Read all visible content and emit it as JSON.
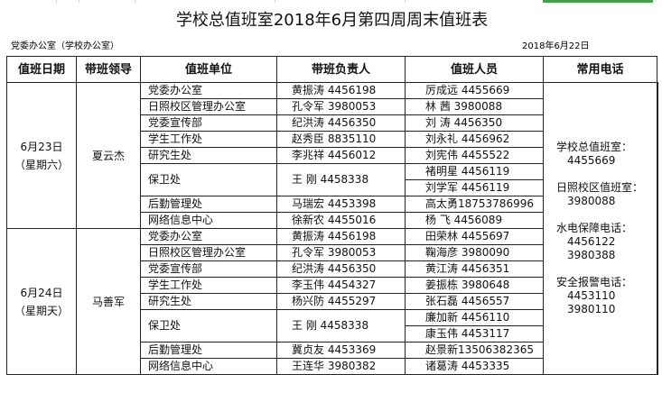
{
  "title": "学校总值班室2018年6月第四周周末值班表",
  "dept": "党委办公室（学校办公室）",
  "date": "2018年6月22日",
  "headers": [
    "值班日期",
    "带班领导",
    "值班单位",
    "带班负责人",
    "值班人员",
    "常用电话"
  ],
  "days": [
    {
      "date": "6月23日",
      "weekday": "（星期六）",
      "leader": "夏云杰",
      "rows": [
        {
          "unit": "党委办公室",
          "resp": "黄振涛  4456198",
          "staff": [
            "厉成远  4455669"
          ]
        },
        {
          "unit": "日照校区管理办公室",
          "resp": "孔令军  3980053",
          "staff": [
            "林    茜  3980088"
          ]
        },
        {
          "unit": "党委宣传部",
          "resp": "纪洪涛  4456350",
          "staff": [
            "刘    涛  4456350"
          ]
        },
        {
          "unit": "学生工作处",
          "resp": "赵秀臣  8835110",
          "staff": [
            "刘永礼  4456962"
          ]
        },
        {
          "unit": "研究生处",
          "resp": "李兆祥  4456012",
          "staff": [
            "刘宪伟  4455522"
          ]
        },
        {
          "unit": "保卫处",
          "resp": "王    刚  4458338",
          "staff": [
            "褚明星  4456119",
            "刘学军  4456119"
          ]
        },
        {
          "unit": "后勤管理处",
          "resp": "马瑞宏  4453398",
          "staff": [
            "高太勇18753786996"
          ]
        },
        {
          "unit": "网络信息中心",
          "resp": "徐新农  4455016",
          "staff": [
            "杨    飞  4456089"
          ]
        }
      ]
    },
    {
      "date": "6月24日",
      "weekday": "（星期天）",
      "leader": "马善军",
      "rows": [
        {
          "unit": "党委办公室",
          "resp": "黄振涛  4456198",
          "staff": [
            "田荣林  4455697"
          ]
        },
        {
          "unit": "日照校区管理办公室",
          "resp": "孔令军  3980053",
          "staff": [
            "鞠海彦  3980090"
          ]
        },
        {
          "unit": "党委宣传部",
          "resp": "纪洪涛  4456350",
          "staff": [
            "黄江涛  4456351"
          ]
        },
        {
          "unit": "学生工作处",
          "resp": "李玉伟  4454327",
          "staff": [
            "姜振栋  3980648"
          ]
        },
        {
          "unit": "研究生处",
          "resp": "杨兴防  4455297",
          "staff": [
            "张石磊  4456557"
          ]
        },
        {
          "unit": "保卫处",
          "resp": "王    刚  4458338",
          "staff": [
            "廉加新  4456110",
            "康玉伟  4453117"
          ]
        },
        {
          "unit": "后勤管理处",
          "resp": "冀贞友  4453369",
          "staff": [
            "赵景新13506382365"
          ]
        },
        {
          "unit": "网络信息中心",
          "resp": "王连华  3980382",
          "staff": [
            "诸葛涛  4453335"
          ]
        }
      ]
    }
  ],
  "phones": [
    {
      "label": "学校总值班室：",
      "numbers": [
        "4455669"
      ]
    },
    {
      "label": "日照校区值班室：",
      "numbers": [
        "3980088"
      ]
    },
    {
      "label": "水电保障电话：",
      "numbers": [
        "4456122",
        "3980388"
      ]
    },
    {
      "label": "安全报警电话：",
      "numbers": [
        "4453110",
        "3980110"
      ]
    }
  ],
  "colors": {
    "accent": "#4a9d4f",
    "border": "#222222"
  }
}
